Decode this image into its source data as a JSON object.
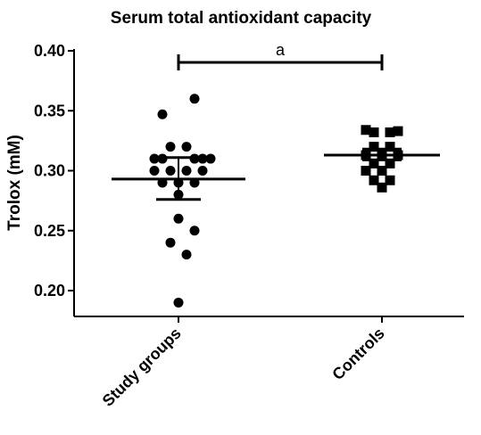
{
  "chart_data": {
    "type": "scatter",
    "title": "Serum total antioxidant capacity",
    "ylabel": "Trolox (mM)",
    "xlabel": "",
    "ylim": [
      0.18,
      0.4
    ],
    "yticks": [
      "0.40",
      "0.35",
      "0.30",
      "0.25",
      "0.20"
    ],
    "ytick_values": [
      0.4,
      0.35,
      0.3,
      0.25,
      0.2
    ],
    "categories": [
      "Study groups",
      "Controls"
    ],
    "grid": false,
    "legend": "none",
    "colors": {
      "marks": "#000000",
      "background": "#ffffff"
    },
    "series": [
      {
        "category": "Study groups",
        "marker": "circle",
        "points": [
          {
            "offset": 2,
            "value": 0.36
          },
          {
            "offset": -2,
            "value": 0.347
          },
          {
            "offset": -1,
            "value": 0.32
          },
          {
            "offset": 1,
            "value": 0.32
          },
          {
            "offset": -3,
            "value": 0.31
          },
          {
            "offset": -2,
            "value": 0.31
          },
          {
            "offset": 2,
            "value": 0.31
          },
          {
            "offset": 3,
            "value": 0.31
          },
          {
            "offset": 4,
            "value": 0.31
          },
          {
            "offset": -3,
            "value": 0.3
          },
          {
            "offset": -1,
            "value": 0.3
          },
          {
            "offset": 1,
            "value": 0.3
          },
          {
            "offset": 3,
            "value": 0.3
          },
          {
            "offset": -2,
            "value": 0.29
          },
          {
            "offset": 0,
            "value": 0.29
          },
          {
            "offset": 2,
            "value": 0.29
          },
          {
            "offset": 0,
            "value": 0.28
          },
          {
            "offset": 0,
            "value": 0.26
          },
          {
            "offset": 2,
            "value": 0.25
          },
          {
            "offset": -1,
            "value": 0.24
          },
          {
            "offset": 1,
            "value": 0.23
          },
          {
            "offset": 0,
            "value": 0.19
          }
        ],
        "mean": 0.293,
        "error_low": 0.276,
        "error_high": 0.311
      },
      {
        "category": "Controls",
        "marker": "square",
        "points": [
          {
            "offset": -2,
            "value": 0.334
          },
          {
            "offset": -1,
            "value": 0.332
          },
          {
            "offset": 1,
            "value": 0.332
          },
          {
            "offset": 2,
            "value": 0.333
          },
          {
            "offset": -1,
            "value": 0.32
          },
          {
            "offset": 1,
            "value": 0.32
          },
          {
            "offset": -2,
            "value": 0.313
          },
          {
            "offset": 0,
            "value": 0.313
          },
          {
            "offset": 2,
            "value": 0.313
          },
          {
            "offset": -1,
            "value": 0.306
          },
          {
            "offset": 1,
            "value": 0.306
          },
          {
            "offset": -2,
            "value": 0.3
          },
          {
            "offset": 0,
            "value": 0.3
          },
          {
            "offset": -1,
            "value": 0.292
          },
          {
            "offset": 1,
            "value": 0.292
          },
          {
            "offset": 0,
            "value": 0.286
          }
        ],
        "mean": 0.313,
        "error_low": 0.309,
        "error_high": 0.318
      }
    ],
    "annotations": [
      {
        "text": "a",
        "from": "Study groups",
        "to": "Controls",
        "value": 0.39
      }
    ]
  }
}
